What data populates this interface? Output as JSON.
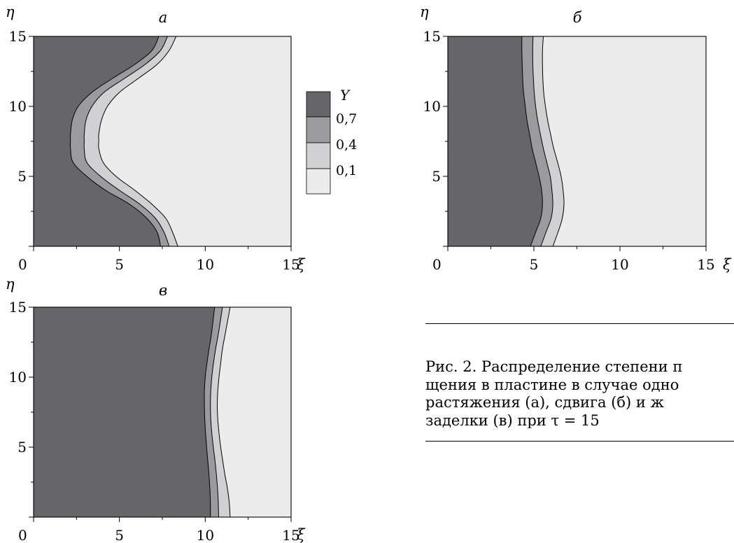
{
  "colors": {
    "band_above_0_7": "#66666a",
    "band_0_4_to_0_7": "#9b9b9e",
    "band_0_1_to_0_4": "#d1d1d3",
    "band_below_0_1": "#ececed",
    "line": "#000000"
  },
  "chart_data": [
    {
      "type": "area",
      "panel": "а",
      "xlabel": "ξ",
      "ylabel": "η",
      "xlim": [
        0,
        15
      ],
      "ylim": [
        0,
        15
      ],
      "x_ticks": [
        "0",
        "5",
        "10",
        "15"
      ],
      "y_ticks": [
        "5",
        "10",
        "15"
      ],
      "contour_levels": [
        0.7,
        0.4,
        0.1
      ],
      "contours": [
        {
          "level": 0.7,
          "eta": [
            15,
            14,
            13,
            12,
            11,
            10,
            9,
            8,
            7.5,
            7,
            6,
            5,
            4,
            3,
            2,
            1,
            0
          ],
          "xi": [
            7.3,
            6.9,
            5.9,
            4.6,
            3.4,
            2.6,
            2.25,
            2.15,
            2.15,
            2.15,
            2.3,
            3.1,
            4.2,
            5.6,
            6.6,
            7.2,
            7.4
          ]
        },
        {
          "level": 0.4,
          "eta": [
            15,
            14,
            13,
            12,
            11,
            10,
            9,
            8,
            7.5,
            7,
            6,
            5,
            4,
            3,
            2,
            1,
            0
          ],
          "xi": [
            7.8,
            7.4,
            6.5,
            5.3,
            4.1,
            3.4,
            3.05,
            2.95,
            2.95,
            2.95,
            3.1,
            3.9,
            5.0,
            6.2,
            7.1,
            7.6,
            7.9
          ]
        },
        {
          "level": 0.1,
          "eta": [
            15,
            14,
            13,
            12,
            11,
            10,
            9,
            8,
            7.5,
            7,
            6,
            5,
            4,
            3,
            2,
            1,
            0
          ],
          "xi": [
            8.3,
            7.9,
            7.2,
            6.1,
            5.0,
            4.3,
            3.95,
            3.8,
            3.8,
            3.8,
            4.05,
            4.8,
            5.9,
            6.9,
            7.7,
            8.1,
            8.4
          ]
        }
      ]
    },
    {
      "type": "area",
      "panel": "б",
      "xlabel": "ξ",
      "ylabel": "η",
      "xlim": [
        0,
        15
      ],
      "ylim": [
        0,
        15
      ],
      "x_ticks": [
        "0",
        "5",
        "10",
        "15"
      ],
      "y_ticks": [
        "5",
        "10",
        "15"
      ],
      "contour_levels": [
        0.7,
        0.4,
        0.1
      ],
      "contours": [
        {
          "level": 0.7,
          "eta": [
            15,
            14,
            13,
            12,
            11,
            10,
            9,
            8,
            7,
            6,
            5,
            4,
            3,
            2,
            1,
            0
          ],
          "xi": [
            4.3,
            4.3,
            4.32,
            4.35,
            4.4,
            4.5,
            4.6,
            4.75,
            4.9,
            5.1,
            5.3,
            5.45,
            5.5,
            5.4,
            5.1,
            4.8
          ]
        },
        {
          "level": 0.4,
          "eta": [
            15,
            14,
            13,
            12,
            11,
            10,
            9,
            8,
            7,
            6,
            5,
            4,
            3,
            2,
            1,
            0
          ],
          "xi": [
            4.95,
            4.93,
            4.94,
            4.97,
            5.02,
            5.1,
            5.22,
            5.38,
            5.55,
            5.75,
            5.95,
            6.05,
            6.1,
            6.0,
            5.7,
            5.4
          ]
        },
        {
          "level": 0.1,
          "eta": [
            15,
            14,
            13,
            12,
            11,
            10,
            9,
            8,
            7,
            6,
            5,
            4,
            3,
            2,
            1,
            0
          ],
          "xi": [
            5.55,
            5.5,
            5.5,
            5.52,
            5.57,
            5.67,
            5.8,
            5.97,
            6.15,
            6.38,
            6.58,
            6.7,
            6.75,
            6.65,
            6.4,
            6.1
          ]
        }
      ]
    },
    {
      "type": "area",
      "panel": "в",
      "xlabel": "ξ",
      "ylabel": "η",
      "xlim": [
        0,
        15
      ],
      "ylim": [
        0,
        15
      ],
      "x_ticks": [
        "0",
        "5",
        "10",
        "15"
      ],
      "y_ticks": [
        "5",
        "10",
        "15"
      ],
      "contour_levels": [
        0.7,
        0.4,
        0.1
      ],
      "contours": [
        {
          "level": 0.7,
          "eta": [
            15,
            14,
            13,
            12,
            11,
            10,
            9,
            8,
            7,
            6,
            5,
            4,
            3,
            2,
            1,
            0
          ],
          "xi": [
            10.55,
            10.45,
            10.35,
            10.22,
            10.1,
            10.0,
            9.95,
            9.95,
            9.97,
            10.02,
            10.08,
            10.15,
            10.22,
            10.27,
            10.3,
            10.3
          ]
        },
        {
          "level": 0.4,
          "eta": [
            15,
            14,
            13,
            12,
            11,
            10,
            9,
            8,
            7,
            6,
            5,
            4,
            3,
            2,
            1,
            0
          ],
          "xi": [
            11.0,
            10.88,
            10.75,
            10.6,
            10.48,
            10.38,
            10.32,
            10.3,
            10.32,
            10.38,
            10.47,
            10.57,
            10.65,
            10.72,
            10.76,
            10.78
          ]
        },
        {
          "level": 0.1,
          "eta": [
            15,
            14,
            13,
            12,
            11,
            10,
            9,
            8,
            7,
            6,
            5,
            4,
            3,
            2,
            1,
            0
          ],
          "xi": [
            11.45,
            11.3,
            11.15,
            11.0,
            10.9,
            10.8,
            10.73,
            10.7,
            10.73,
            10.8,
            10.9,
            11.02,
            11.15,
            11.3,
            11.4,
            11.45
          ]
        }
      ]
    }
  ],
  "panels": [
    {
      "label": "а",
      "x_label": "ξ",
      "y_label": "η"
    },
    {
      "label": "б",
      "x_label": "ξ",
      "y_label": "η"
    },
    {
      "label": "в",
      "x_label": "ξ",
      "y_label": "η"
    }
  ],
  "legend": {
    "title": "Y",
    "levels": [
      "0,7",
      "0,4",
      "0,1"
    ]
  },
  "caption": {
    "lines": [
      "Рис. 2.  Распределение степени п",
      "щения в пластине в случае одно",
      "растяжения (а), сдвига (б) и ж",
      "заделки (в) при τ = 15"
    ]
  }
}
